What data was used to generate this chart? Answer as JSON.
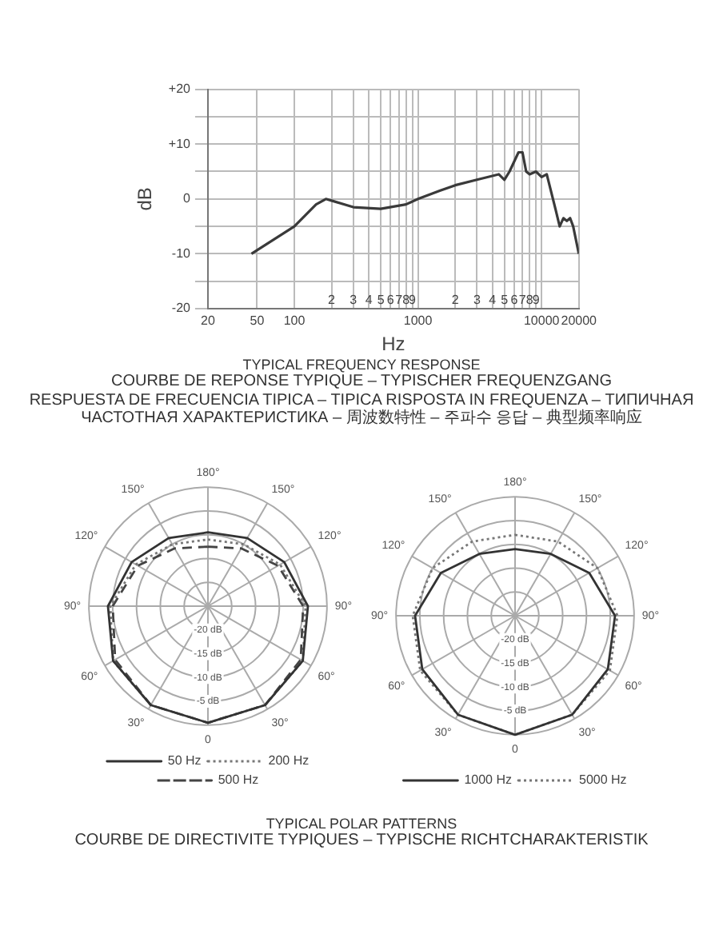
{
  "chart_data": [
    {
      "type": "line",
      "title": "TYPICAL FREQUENCY RESPONSE",
      "subtitle": "COURBE DE REPONSE TYPIQUE – TYPISCHER FREQUENZGANG\nRESPUESTA DE FRECUENCIA TIPICA – TIPICA RISPOSTA IN FREQUENZA – ТИПИЧНАЯ ЧАСТОТНАЯ ХАРАКТЕРИСТИКА – 周波数特性 – 주파수 응답 – 典型频率响应",
      "xlabel": "Hz",
      "ylabel": "dB",
      "log": "x",
      "grid": true,
      "legend": false,
      "marker": "none",
      "x": [
        45,
        100,
        150,
        180,
        200,
        300,
        500,
        800,
        1000,
        1500,
        2000,
        3000,
        4500,
        5000,
        5500,
        6500,
        7000,
        7500,
        8000,
        9000,
        10000,
        11000,
        13000,
        14000,
        15000,
        16000,
        17000,
        18000,
        20000
      ],
      "series": [
        {
          "color": "#3a3a3a",
          "values": [
            -10,
            -5,
            -1,
            0,
            -0.3,
            -1.5,
            -1.8,
            -1,
            0,
            1.5,
            2.5,
            3.5,
            4.5,
            3.5,
            5,
            8.5,
            8.5,
            5,
            4.5,
            5,
            4,
            4.5,
            -2,
            -5,
            -3.5,
            -4,
            -3.5,
            -5,
            -10
          ]
        }
      ],
      "xlim": [
        20,
        20000
      ],
      "xticks": [
        20,
        50,
        100,
        {
          "value": 200,
          "label": null
        },
        {
          "value": 300,
          "label": null
        },
        {
          "value": 400,
          "label": null
        },
        {
          "value": 500,
          "label": null
        },
        {
          "value": 600,
          "label": null
        },
        {
          "value": 700,
          "label": null
        },
        {
          "value": 800,
          "label": null
        },
        {
          "value": 900,
          "label": null
        },
        1000,
        {
          "value": 2000,
          "label": null
        },
        {
          "value": 3000,
          "label": null
        },
        {
          "value": 4000,
          "label": null
        },
        {
          "value": 5000,
          "label": null
        },
        {
          "value": 6000,
          "label": null
        },
        {
          "value": 7000,
          "label": null
        },
        {
          "value": 8000,
          "label": null
        },
        {
          "value": 9000,
          "label": null
        },
        10000,
        20000
      ],
      "annotations": [
        "2",
        "3",
        "4",
        "5",
        "6",
        "7",
        "8",
        "9",
        "2",
        "3",
        "4",
        "5",
        "6",
        "7",
        "8",
        "9"
      ],
      "ylim": [
        -20,
        20
      ],
      "yticks": [
        -20,
        {
          "value": -15,
          "label": null
        },
        -10,
        {
          "value": -5,
          "label": null
        },
        0,
        {
          "value": 5,
          "label": null
        },
        {
          "value": 10,
          "label": "+10"
        },
        {
          "value": 15,
          "label": null
        },
        {
          "value": 20,
          "label": "+20"
        }
      ]
    },
    {
      "type": "radar",
      "grid": true,
      "legend": "bottom",
      "categories": [
        "180°",
        "150°",
        "120°",
        "90°",
        "60°",
        "30°",
        "0",
        "30°",
        "60°",
        "90°",
        "120°",
        "150°"
      ],
      "ylim": [
        -25,
        0
      ],
      "yticks": [
        {
          "value": -20,
          "label": "-20 dB"
        },
        {
          "value": -15,
          "label": "-15 dB"
        },
        {
          "value": -10,
          "label": "-10 dB"
        },
        {
          "value": -5,
          "label": "-5 dB"
        }
      ],
      "series": [
        {
          "name": "50 Hz",
          "color": "#333333",
          "line_style": "solid",
          "values": [
            -9.5,
            -8.5,
            -6.5,
            -4,
            -2,
            -1,
            -0.5,
            -1,
            -2,
            -4,
            -6.5,
            -8.5
          ]
        },
        {
          "name": "200 Hz",
          "color": "#777777",
          "line_style": "dotted",
          "values": [
            -11,
            -10,
            -7.5,
            -4.5,
            -2,
            -1,
            -0.5,
            -1,
            -2,
            -4.5,
            -7.5,
            -10
          ]
        },
        {
          "name": "500 Hz",
          "color": "#444444",
          "line_style": "dashed",
          "values": [
            -12.5,
            -11,
            -8,
            -5,
            -2.5,
            -1,
            -0.5,
            -1,
            -2.5,
            -5,
            -8,
            -11
          ]
        }
      ]
    },
    {
      "type": "radar",
      "grid": true,
      "legend": "bottom",
      "categories": [
        "180°",
        "150°",
        "120°",
        "90°",
        "60°",
        "30°",
        "0",
        "30°",
        "60°",
        "90°",
        "120°",
        "150°"
      ],
      "ylim": [
        -25,
        0
      ],
      "yticks": [
        {
          "value": -20,
          "label": "-20 dB"
        },
        {
          "value": -15,
          "label": "-15 dB"
        },
        {
          "value": -10,
          "label": "-10 dB"
        },
        {
          "value": -5,
          "label": "-5 dB"
        }
      ],
      "series": [
        {
          "name": "1000 Hz",
          "color": "#333333",
          "line_style": "solid",
          "values": [
            -11,
            -10,
            -7,
            -4,
            -2.5,
            -1,
            0,
            -1,
            -2.5,
            -4,
            -7,
            -10
          ]
        },
        {
          "name": "5000 Hz",
          "color": "#777777",
          "line_style": "dotted",
          "values": [
            -8,
            -7,
            -5,
            -3.5,
            -2,
            -1,
            0,
            -1,
            -2,
            -3.5,
            -5,
            -7
          ]
        }
      ]
    },
    {
      "type": "other",
      "title": "TYPICAL POLAR PATTERNS",
      "subtitle": "COURBE DE DIRECTIVITE TYPIQUES – TYPISCHE RICHTCHARAKTERISTIK"
    }
  ]
}
